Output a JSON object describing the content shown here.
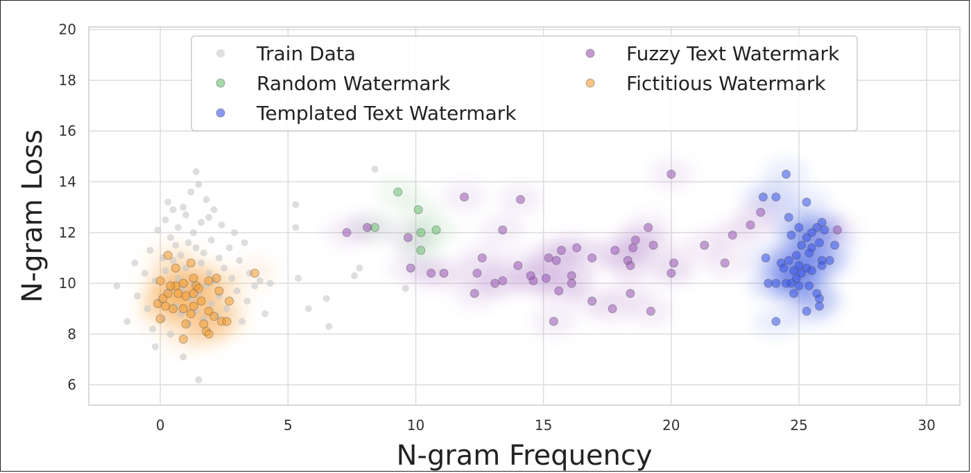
{
  "chart_data": {
    "type": "scatter",
    "xlabel": "N-gram Frequency",
    "ylabel": "N-gram Loss",
    "xlim": [
      -2.8,
      31.3
    ],
    "ylim": [
      5.2,
      20.1
    ],
    "xticks": [
      0,
      5,
      10,
      15,
      20,
      25,
      30
    ],
    "yticks": [
      6,
      8,
      10,
      12,
      14,
      16,
      18,
      20
    ],
    "grid": true,
    "legend_position": "top",
    "series": [
      {
        "name": "Train Data",
        "color": "#c8c8c8",
        "kde": false,
        "points": [
          [
            -1.7,
            9.9
          ],
          [
            -1.3,
            8.5
          ],
          [
            -1.0,
            10.8
          ],
          [
            -0.9,
            9.5
          ],
          [
            -0.6,
            10.4
          ],
          [
            -0.5,
            9.0
          ],
          [
            -0.4,
            11.3
          ],
          [
            -0.3,
            8.2
          ],
          [
            -0.2,
            10.1
          ],
          [
            -0.1,
            12.1
          ],
          [
            0.0,
            9.3
          ],
          [
            0.1,
            11.0
          ],
          [
            0.1,
            8.6
          ],
          [
            0.2,
            12.5
          ],
          [
            0.2,
            10.5
          ],
          [
            0.3,
            13.2
          ],
          [
            0.3,
            9.7
          ],
          [
            0.4,
            11.8
          ],
          [
            0.4,
            8.0
          ],
          [
            0.5,
            10.9
          ],
          [
            0.5,
            12.9
          ],
          [
            0.6,
            9.1
          ],
          [
            0.6,
            11.5
          ],
          [
            0.7,
            10.2
          ],
          [
            0.7,
            12.2
          ],
          [
            0.8,
            8.8
          ],
          [
            0.8,
            11.1
          ],
          [
            0.9,
            13.0
          ],
          [
            0.9,
            9.8
          ],
          [
            1.0,
            10.6
          ],
          [
            1.0,
            12.7
          ],
          [
            1.1,
            8.4
          ],
          [
            1.1,
            11.6
          ],
          [
            1.2,
            9.4
          ],
          [
            1.2,
            13.6
          ],
          [
            1.3,
            10.0
          ],
          [
            1.3,
            12.0
          ],
          [
            1.4,
            8.9
          ],
          [
            1.4,
            11.4
          ],
          [
            1.5,
            13.9
          ],
          [
            1.5,
            9.6
          ],
          [
            1.6,
            10.8
          ],
          [
            1.6,
            12.4
          ],
          [
            1.7,
            8.6
          ],
          [
            1.7,
            11.2
          ],
          [
            1.8,
            13.3
          ],
          [
            1.8,
            9.9
          ],
          [
            1.9,
            10.4
          ],
          [
            1.9,
            12.6
          ],
          [
            2.0,
            9.2
          ],
          [
            2.0,
            11.7
          ],
          [
            2.1,
            10.1
          ],
          [
            2.1,
            12.9
          ],
          [
            2.2,
            8.7
          ],
          [
            2.3,
            11.0
          ],
          [
            2.3,
            9.5
          ],
          [
            2.4,
            12.3
          ],
          [
            2.5,
            10.6
          ],
          [
            2.6,
            9.0
          ],
          [
            2.7,
            11.4
          ],
          [
            2.8,
            10.2
          ],
          [
            2.9,
            12.0
          ],
          [
            3.0,
            9.7
          ],
          [
            3.1,
            10.9
          ],
          [
            3.2,
            8.5
          ],
          [
            3.3,
            11.6
          ],
          [
            3.4,
            9.3
          ],
          [
            3.5,
            10.4
          ],
          [
            3.7,
            9.9
          ],
          [
            3.9,
            10.1
          ],
          [
            4.1,
            8.8
          ],
          [
            4.3,
            10.0
          ],
          [
            1.4,
            14.4
          ],
          [
            1.5,
            6.2
          ],
          [
            0.9,
            7.1
          ],
          [
            -0.2,
            7.5
          ],
          [
            5.3,
            13.1
          ],
          [
            5.4,
            10.2
          ],
          [
            5.8,
            9.0
          ],
          [
            6.5,
            9.4
          ],
          [
            6.6,
            8.3
          ],
          [
            7.6,
            10.3
          ],
          [
            7.8,
            10.6
          ],
          [
            8.2,
            12.2
          ],
          [
            8.4,
            14.5
          ],
          [
            9.6,
            9.8
          ],
          [
            5.3,
            12.2
          ]
        ]
      },
      {
        "name": "Random Watermark",
        "color": "#6dbf72",
        "kde": true,
        "points": [
          [
            9.3,
            13.6
          ],
          [
            10.1,
            12.9
          ],
          [
            10.2,
            12.0
          ],
          [
            10.8,
            12.1
          ],
          [
            8.4,
            12.2
          ],
          [
            10.2,
            11.3
          ]
        ]
      },
      {
        "name": "Templated Text Watermark",
        "color": "#3b55e6",
        "kde": true,
        "points": [
          [
            24.5,
            14.3
          ],
          [
            23.6,
            13.4
          ],
          [
            24.1,
            13.4
          ],
          [
            25.3,
            13.2
          ],
          [
            24.6,
            12.6
          ],
          [
            25.9,
            12.4
          ],
          [
            25.7,
            12.2
          ],
          [
            25.0,
            12.2
          ],
          [
            26.0,
            12.1
          ],
          [
            24.7,
            11.9
          ],
          [
            25.5,
            12.0
          ],
          [
            25.3,
            11.8
          ],
          [
            25.1,
            11.5
          ],
          [
            25.5,
            11.4
          ],
          [
            25.8,
            11.6
          ],
          [
            26.4,
            11.5
          ],
          [
            23.7,
            11.0
          ],
          [
            24.3,
            10.8
          ],
          [
            24.6,
            10.9
          ],
          [
            24.9,
            11.1
          ],
          [
            25.0,
            10.7
          ],
          [
            25.4,
            11.2
          ],
          [
            25.9,
            10.9
          ],
          [
            26.2,
            10.9
          ],
          [
            24.8,
            10.5
          ],
          [
            25.1,
            10.4
          ],
          [
            25.3,
            10.6
          ],
          [
            25.9,
            10.7
          ],
          [
            24.7,
            10.0
          ],
          [
            25.0,
            9.9
          ],
          [
            25.4,
            9.9
          ],
          [
            24.5,
            10.0
          ],
          [
            24.1,
            10.0
          ],
          [
            23.8,
            10.0
          ],
          [
            25.7,
            9.6
          ],
          [
            25.8,
            9.4
          ],
          [
            24.8,
            9.6
          ],
          [
            25.8,
            9.1
          ],
          [
            25.3,
            8.9
          ],
          [
            24.1,
            8.5
          ],
          [
            24.4,
            10.6
          ],
          [
            25.5,
            10.5
          ],
          [
            24.9,
            10.2
          ]
        ]
      },
      {
        "name": "Fuzzy Text Watermark",
        "color": "#9b59b6",
        "kde": true,
        "points": [
          [
            20.0,
            14.3
          ],
          [
            11.9,
            13.4
          ],
          [
            14.1,
            13.3
          ],
          [
            23.5,
            12.8
          ],
          [
            23.1,
            12.3
          ],
          [
            26.5,
            12.1
          ],
          [
            7.3,
            12.0
          ],
          [
            8.1,
            12.2
          ],
          [
            9.7,
            11.8
          ],
          [
            13.4,
            12.1
          ],
          [
            19.1,
            12.2
          ],
          [
            22.4,
            11.9
          ],
          [
            21.3,
            11.5
          ],
          [
            16.3,
            11.4
          ],
          [
            15.7,
            11.3
          ],
          [
            18.5,
            11.4
          ],
          [
            19.3,
            11.5
          ],
          [
            12.6,
            11.0
          ],
          [
            14.0,
            10.7
          ],
          [
            16.9,
            11.0
          ],
          [
            17.8,
            11.3
          ],
          [
            18.3,
            10.9
          ],
          [
            18.6,
            11.7
          ],
          [
            15.2,
            11.0
          ],
          [
            15.5,
            10.9
          ],
          [
            18.4,
            10.7
          ],
          [
            20.1,
            10.8
          ],
          [
            22.1,
            10.8
          ],
          [
            9.8,
            10.6
          ],
          [
            11.1,
            10.4
          ],
          [
            12.4,
            10.4
          ],
          [
            14.5,
            10.3
          ],
          [
            16.1,
            10.3
          ],
          [
            14.6,
            10.1
          ],
          [
            15.1,
            10.2
          ],
          [
            16.1,
            10.0
          ],
          [
            13.1,
            10.0
          ],
          [
            13.4,
            10.1
          ],
          [
            20.0,
            10.4
          ],
          [
            12.3,
            9.6
          ],
          [
            15.6,
            9.7
          ],
          [
            18.4,
            9.6
          ],
          [
            16.9,
            9.3
          ],
          [
            17.7,
            9.0
          ],
          [
            19.2,
            8.9
          ],
          [
            15.4,
            8.5
          ],
          [
            10.6,
            10.4
          ]
        ]
      },
      {
        "name": "Fictitious Watermark",
        "color": "#f39c33",
        "kde": true,
        "points": [
          [
            0.3,
            11.1
          ],
          [
            1.2,
            10.8
          ],
          [
            0.6,
            10.6
          ],
          [
            0.0,
            10.1
          ],
          [
            0.9,
            10.0
          ],
          [
            1.3,
            10.2
          ],
          [
            1.9,
            10.1
          ],
          [
            2.2,
            10.2
          ],
          [
            0.6,
            9.9
          ],
          [
            1.4,
            9.9
          ],
          [
            2.3,
            9.7
          ],
          [
            0.3,
            9.6
          ],
          [
            0.7,
            9.6
          ],
          [
            1.0,
            9.5
          ],
          [
            1.3,
            9.6
          ],
          [
            1.6,
            9.3
          ],
          [
            2.7,
            9.3
          ],
          [
            -0.1,
            9.2
          ],
          [
            0.2,
            9.1
          ],
          [
            0.5,
            9.0
          ],
          [
            0.9,
            9.0
          ],
          [
            1.3,
            9.1
          ],
          [
            1.9,
            8.9
          ],
          [
            2.1,
            8.7
          ],
          [
            0.0,
            8.6
          ],
          [
            1.0,
            8.4
          ],
          [
            1.7,
            8.4
          ],
          [
            2.4,
            8.5
          ],
          [
            2.6,
            8.5
          ],
          [
            1.8,
            8.1
          ],
          [
            1.9,
            8.0
          ],
          [
            0.9,
            7.8
          ],
          [
            3.7,
            10.4
          ],
          [
            0.1,
            9.4
          ],
          [
            1.5,
            9.8
          ],
          [
            1.2,
            8.8
          ],
          [
            0.4,
            9.9
          ]
        ]
      }
    ]
  }
}
